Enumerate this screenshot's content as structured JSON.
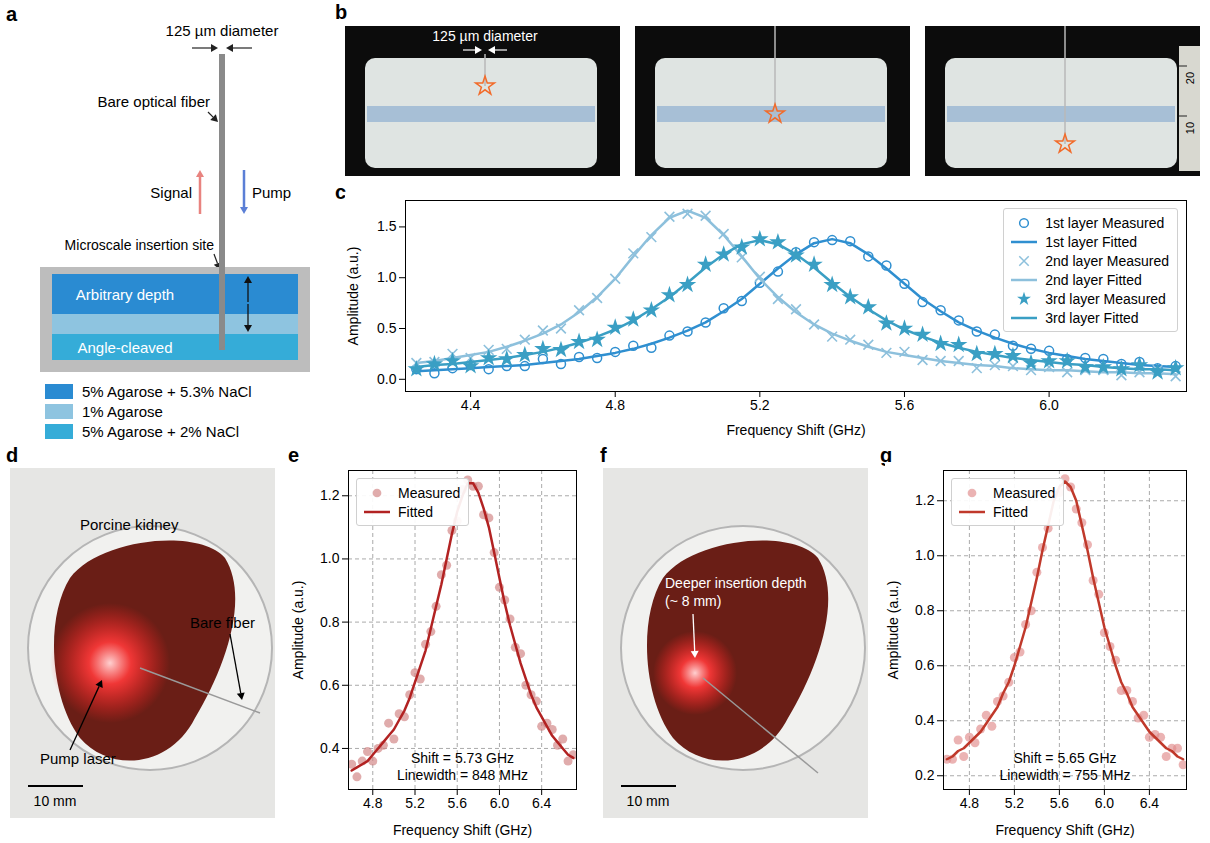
{
  "chart_data": [
    {
      "panel": "c",
      "type": "line",
      "xlabel": "Frequency Shift (GHz)",
      "ylabel": "Amplitude (a.u.)",
      "xlim": [
        4.22,
        6.38
      ],
      "xticks": [
        4.4,
        4.8,
        5.2,
        5.6,
        {
          "value": 6,
          "label": "6.0"
        }
      ],
      "ylim": [
        -0.12,
        1.76
      ],
      "yticks": [
        {
          "value": 0,
          "label": "0.0"
        },
        0.5,
        {
          "value": 1,
          "label": "1.0"
        },
        1.5
      ],
      "grid": false,
      "legend": "upper right",
      "x": [
        4.25,
        4.3,
        4.35,
        4.4,
        4.45,
        4.5,
        4.55,
        4.6,
        4.65,
        4.7,
        4.75,
        4.8,
        4.85,
        4.9,
        4.95,
        5.0,
        5.05,
        5.1,
        5.15,
        5.2,
        5.25,
        5.3,
        5.35,
        5.4,
        5.45,
        5.5,
        5.55,
        5.6,
        5.65,
        5.7,
        5.75,
        5.8,
        5.85,
        5.9,
        5.95,
        6.0,
        6.05,
        6.1,
        6.15,
        6.2,
        6.25,
        6.3,
        6.35
      ],
      "series": [
        {
          "name": "1st layer Measured",
          "type": "scatter",
          "marker": "open_circle",
          "color": "#2f8fd0",
          "values": [
            0.1,
            0.06,
            0.11,
            0.14,
            0.1,
            0.13,
            0.13,
            0.2,
            0.15,
            0.22,
            0.21,
            0.27,
            0.33,
            0.31,
            0.43,
            0.47,
            0.56,
            0.7,
            0.77,
            0.95,
            1.06,
            1.25,
            1.35,
            1.37,
            1.36,
            1.21,
            1.12,
            0.94,
            0.76,
            0.68,
            0.58,
            0.47,
            0.44,
            0.33,
            0.3,
            0.28,
            0.2,
            0.21,
            0.2,
            0.15,
            0.17,
            0.11,
            0.13
          ]
        },
        {
          "name": "1st layer Fitted",
          "type": "line",
          "color": "#2f8fd0",
          "values": [
            0.08,
            0.09,
            0.1,
            0.11,
            0.12,
            0.13,
            0.14,
            0.16,
            0.18,
            0.2,
            0.23,
            0.26,
            0.3,
            0.35,
            0.41,
            0.48,
            0.56,
            0.67,
            0.79,
            0.94,
            1.09,
            1.23,
            1.34,
            1.38,
            1.34,
            1.23,
            1.09,
            0.94,
            0.79,
            0.67,
            0.56,
            0.48,
            0.41,
            0.35,
            0.3,
            0.26,
            0.23,
            0.2,
            0.18,
            0.16,
            0.14,
            0.13,
            0.12
          ]
        },
        {
          "name": "2nd layer Measured",
          "type": "scatter",
          "marker": "x",
          "color": "#8dc0dc",
          "values": [
            0.16,
            0.17,
            0.25,
            0.21,
            0.29,
            0.3,
            0.39,
            0.48,
            0.5,
            0.68,
            0.8,
            0.99,
            1.24,
            1.4,
            1.6,
            1.63,
            1.61,
            1.43,
            1.2,
            1.01,
            0.79,
            0.69,
            0.54,
            0.42,
            0.39,
            0.34,
            0.26,
            0.27,
            0.19,
            0.18,
            0.18,
            0.11,
            0.14,
            0.13,
            0.09,
            0.12,
            0.07,
            0.09,
            0.09,
            0.04,
            0.07,
            0.09,
            0.03
          ]
        },
        {
          "name": "2nd layer Fitted",
          "type": "line",
          "color": "#8dc0dc",
          "values": [
            0.16,
            0.18,
            0.21,
            0.24,
            0.27,
            0.32,
            0.38,
            0.45,
            0.54,
            0.66,
            0.81,
            0.99,
            1.21,
            1.42,
            1.59,
            1.66,
            1.59,
            1.42,
            1.21,
            0.99,
            0.81,
            0.66,
            0.54,
            0.45,
            0.38,
            0.32,
            0.27,
            0.24,
            0.21,
            0.18,
            0.16,
            0.14,
            0.13,
            0.11,
            0.1,
            0.09,
            0.09,
            0.08,
            0.07,
            0.07,
            0.06,
            0.06,
            0.05
          ]
        },
        {
          "name": "3rd layer Measured",
          "type": "scatter",
          "marker": "star",
          "color": "#3a9fc4",
          "values": [
            0.1,
            0.15,
            0.18,
            0.13,
            0.21,
            0.2,
            0.24,
            0.3,
            0.29,
            0.37,
            0.39,
            0.51,
            0.59,
            0.68,
            0.83,
            0.93,
            1.13,
            1.23,
            1.3,
            1.38,
            1.35,
            1.22,
            1.13,
            0.93,
            0.81,
            0.71,
            0.55,
            0.5,
            0.44,
            0.35,
            0.34,
            0.25,
            0.25,
            0.23,
            0.16,
            0.18,
            0.18,
            0.12,
            0.12,
            0.1,
            0.14,
            0.07,
            0.11
          ]
        },
        {
          "name": "3rd layer Fitted",
          "type": "line",
          "color": "#3a9fc4",
          "values": [
            0.12,
            0.14,
            0.15,
            0.17,
            0.19,
            0.21,
            0.24,
            0.27,
            0.31,
            0.36,
            0.42,
            0.49,
            0.58,
            0.69,
            0.81,
            0.95,
            1.1,
            1.23,
            1.33,
            1.37,
            1.33,
            1.23,
            1.1,
            0.95,
            0.81,
            0.69,
            0.58,
            0.49,
            0.42,
            0.36,
            0.31,
            0.27,
            0.24,
            0.21,
            0.19,
            0.17,
            0.15,
            0.14,
            0.12,
            0.11,
            0.1,
            0.1,
            0.09
          ]
        }
      ]
    },
    {
      "panel": "e",
      "type": "line",
      "xlabel": "Frequency Shift (GHz)",
      "ylabel": "Amplitude (a.u.)",
      "xlim": [
        4.57,
        6.73
      ],
      "xticks": [
        4.8,
        5.2,
        5.6,
        {
          "value": 6,
          "label": "6.0"
        },
        6.4
      ],
      "ylim": [
        0.27,
        1.28
      ],
      "yticks": [
        0.4,
        0.6,
        0.8,
        {
          "value": 1,
          "label": "1.0"
        },
        1.2
      ],
      "grid": true,
      "legend": "upper left",
      "annotations": [
        "Shift = 5.73 GHz",
        "Linewidth = 848 MHz"
      ],
      "x": [
        4.6,
        4.65,
        4.7,
        4.75,
        4.8,
        4.85,
        4.9,
        4.95,
        5.0,
        5.05,
        5.1,
        5.15,
        5.2,
        5.25,
        5.3,
        5.35,
        5.4,
        5.45,
        5.5,
        5.55,
        5.6,
        5.65,
        5.7,
        5.75,
        5.8,
        5.85,
        5.9,
        5.95,
        6.0,
        6.05,
        6.1,
        6.15,
        6.2,
        6.25,
        6.3,
        6.35,
        6.4,
        6.45,
        6.5,
        6.55,
        6.6,
        6.65,
        6.7
      ],
      "series": [
        {
          "name": "Measured",
          "type": "scatter",
          "marker": "circle",
          "color": "#cf7f7f",
          "values": [
            0.35,
            0.31,
            0.36,
            0.39,
            0.36,
            0.4,
            0.41,
            0.48,
            0.43,
            0.51,
            0.5,
            0.57,
            0.64,
            0.62,
            0.73,
            0.77,
            0.85,
            0.95,
            0.98,
            1.09,
            1.12,
            1.22,
            1.25,
            1.23,
            1.23,
            1.14,
            1.13,
            1.02,
            0.91,
            0.87,
            0.81,
            0.72,
            0.7,
            0.6,
            0.57,
            0.55,
            0.47,
            0.48,
            0.46,
            0.41,
            0.43,
            0.36,
            0.38
          ]
        },
        {
          "name": "Fitted",
          "type": "line",
          "color": "#b22222",
          "values": [
            0.33,
            0.34,
            0.35,
            0.36,
            0.38,
            0.4,
            0.42,
            0.44,
            0.46,
            0.49,
            0.52,
            0.56,
            0.61,
            0.66,
            0.71,
            0.78,
            0.85,
            0.92,
            1.0,
            1.08,
            1.15,
            1.2,
            1.24,
            1.24,
            1.21,
            1.16,
            1.1,
            1.02,
            0.94,
            0.86,
            0.79,
            0.73,
            0.67,
            0.62,
            0.57,
            0.53,
            0.5,
            0.47,
            0.44,
            0.42,
            0.4,
            0.38,
            0.37
          ]
        }
      ]
    },
    {
      "panel": "g",
      "type": "line",
      "xlabel": "Frequency Shift (GHz)",
      "ylabel": "Amplitude (a.u.)",
      "xlim": [
        4.57,
        6.73
      ],
      "xticks": [
        4.8,
        5.2,
        5.6,
        {
          "value": 6,
          "label": "6.0"
        },
        6.4
      ],
      "ylim": [
        0.15,
        1.31
      ],
      "yticks": [
        0.2,
        0.4,
        0.6,
        0.8,
        {
          "value": 1,
          "label": "1.0"
        },
        1.2
      ],
      "grid": true,
      "legend": "upper left",
      "annotations": [
        "Shift = 5.65 GHz",
        "Linewidth = 755 MHz"
      ],
      "x": [
        4.6,
        4.65,
        4.7,
        4.75,
        4.8,
        4.85,
        4.9,
        4.95,
        5.0,
        5.05,
        5.1,
        5.15,
        5.2,
        5.25,
        5.3,
        5.35,
        5.4,
        5.45,
        5.5,
        5.55,
        5.6,
        5.65,
        5.7,
        5.75,
        5.8,
        5.85,
        5.9,
        5.95,
        6.0,
        6.05,
        6.1,
        6.15,
        6.2,
        6.25,
        6.3,
        6.35,
        6.4,
        6.45,
        6.5,
        6.55,
        6.6,
        6.65,
        6.7
      ],
      "series": [
        {
          "name": "Measured",
          "type": "scatter",
          "marker": "circle",
          "color": "#e08a8a",
          "values": [
            0.26,
            0.26,
            0.33,
            0.27,
            0.34,
            0.32,
            0.37,
            0.42,
            0.38,
            0.47,
            0.49,
            0.54,
            0.63,
            0.65,
            0.75,
            0.8,
            0.94,
            1.03,
            1.1,
            1.22,
            1.23,
            1.28,
            1.25,
            1.17,
            1.12,
            1.04,
            0.91,
            0.86,
            0.72,
            0.67,
            0.62,
            0.51,
            0.51,
            0.47,
            0.41,
            0.42,
            0.34,
            0.35,
            0.34,
            0.27,
            0.3,
            0.3,
            0.24
          ]
        },
        {
          "name": "Fitted",
          "type": "line",
          "color": "#c0392b",
          "values": [
            0.26,
            0.27,
            0.29,
            0.3,
            0.32,
            0.34,
            0.36,
            0.39,
            0.42,
            0.45,
            0.5,
            0.54,
            0.6,
            0.67,
            0.74,
            0.83,
            0.92,
            1.02,
            1.11,
            1.2,
            1.25,
            1.27,
            1.25,
            1.2,
            1.11,
            1.02,
            0.92,
            0.83,
            0.74,
            0.67,
            0.6,
            0.54,
            0.5,
            0.45,
            0.42,
            0.39,
            0.36,
            0.34,
            0.32,
            0.3,
            0.29,
            0.27,
            0.26
          ]
        }
      ]
    }
  ],
  "diagram": {
    "panel": "a",
    "fiber_diameter": "125 µm diameter",
    "fiber": "Bare optical fiber",
    "signal": "Signal",
    "pump": "Pump",
    "insertion_site": "Microscale insertion site",
    "depth": "Arbitrary depth",
    "tip": "Angle-cleaved",
    "layers": [
      {
        "label": "5% Agarose + 5.3% NaCl",
        "color": "#2a8bd2"
      },
      {
        "label": "1% Agarose",
        "color": "#8ec4e0"
      },
      {
        "label": "5% Agarose + 2% NaCl",
        "color": "#35acd8"
      }
    ]
  },
  "photos": [
    {
      "panel": "b",
      "fiber_diameter": "125 µm diameter",
      "ruler_ticks": [
        10,
        20
      ]
    },
    {
      "panel": "d",
      "organ": "Porcine kidney",
      "laser": "Pump laser",
      "fiber": "Bare fiber",
      "scale_bar": "10 mm"
    },
    {
      "panel": "f",
      "depth": [
        "Deeper insertion depth",
        "(~ 8 mm)"
      ],
      "scale_bar": "10 mm"
    }
  ]
}
